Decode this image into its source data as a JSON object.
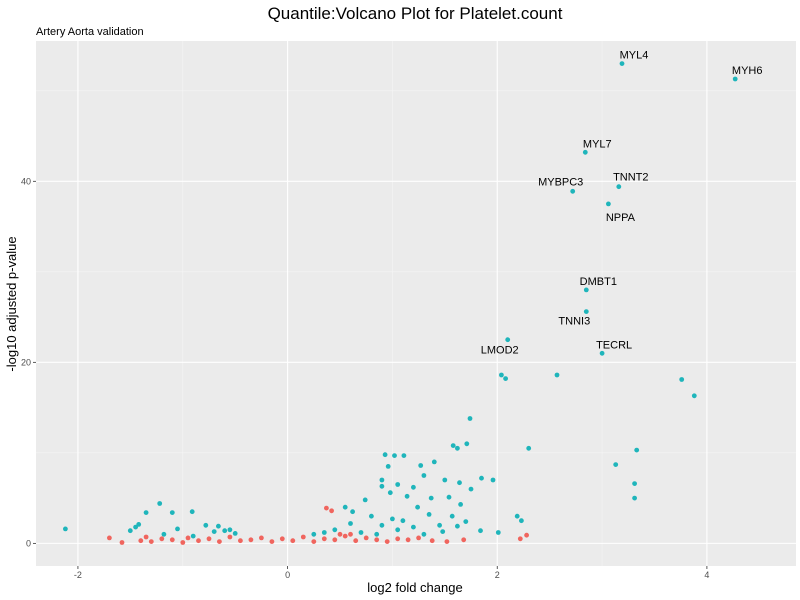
{
  "chart_data": {
    "type": "scatter",
    "title": "Quantile:Volcano Plot for Platelet.count",
    "subtitle": "Artery Aorta validation",
    "xlabel": "log2 fold change",
    "ylabel": "-log10 adjusted p-value",
    "xlim": [
      -2.4,
      4.85
    ],
    "ylim": [
      -2.5,
      55.5
    ],
    "x_ticks": [
      -2,
      0,
      2,
      4
    ],
    "y_ticks": [
      0,
      20,
      40
    ],
    "grid": true,
    "legend": "none",
    "colors": {
      "panel": "#ebebeb",
      "grid_major": "#ffffff",
      "significant": "#1fb5bb",
      "not_significant": "#f0655e"
    },
    "series": [
      {
        "points": [
          [
            4.27,
            51.3
          ],
          [
            3.19,
            53.0
          ],
          [
            2.84,
            43.2
          ],
          [
            3.16,
            39.4
          ],
          [
            2.72,
            38.9
          ],
          [
            3.06,
            37.5
          ],
          [
            2.85,
            28.0
          ],
          [
            2.85,
            25.6
          ],
          [
            2.1,
            22.5
          ],
          [
            3.0,
            21.0
          ],
          [
            2.04,
            18.6
          ],
          [
            2.08,
            18.2
          ],
          [
            2.57,
            18.6
          ],
          [
            3.76,
            18.1
          ],
          [
            3.88,
            16.3
          ],
          [
            1.74,
            13.8
          ],
          [
            1.58,
            10.8
          ],
          [
            1.62,
            10.5
          ],
          [
            1.71,
            11.0
          ],
          [
            2.3,
            10.5
          ],
          [
            3.33,
            10.3
          ],
          [
            3.13,
            8.7
          ],
          [
            1.27,
            8.6
          ],
          [
            1.4,
            9.0
          ],
          [
            0.93,
            9.8
          ],
          [
            1.02,
            9.7
          ],
          [
            0.96,
            8.5
          ],
          [
            1.11,
            9.7
          ],
          [
            1.3,
            7.5
          ],
          [
            0.9,
            7.0
          ],
          [
            1.05,
            6.5
          ],
          [
            1.2,
            6.2
          ],
          [
            1.5,
            7.0
          ],
          [
            1.64,
            6.7
          ],
          [
            1.75,
            6.0
          ],
          [
            1.85,
            7.2
          ],
          [
            1.96,
            7.0
          ],
          [
            0.9,
            6.3
          ],
          [
            0.98,
            5.6
          ],
          [
            1.14,
            5.2
          ],
          [
            1.37,
            5.0
          ],
          [
            1.54,
            5.1
          ],
          [
            1.65,
            4.3
          ],
          [
            1.24,
            4.0
          ],
          [
            0.74,
            4.8
          ],
          [
            3.31,
            6.6
          ],
          [
            3.31,
            5.0
          ],
          [
            0.55,
            4.0
          ],
          [
            0.62,
            3.5
          ],
          [
            0.8,
            3.0
          ],
          [
            1.0,
            2.7
          ],
          [
            1.1,
            2.5
          ],
          [
            1.35,
            3.2
          ],
          [
            1.45,
            2.0
          ],
          [
            1.57,
            3.0
          ],
          [
            1.7,
            2.4
          ],
          [
            0.9,
            2.0
          ],
          [
            0.6,
            2.2
          ],
          [
            0.45,
            1.5
          ],
          [
            0.7,
            1.2
          ],
          [
            0.85,
            1.0
          ],
          [
            1.05,
            1.5
          ],
          [
            1.2,
            1.8
          ],
          [
            1.3,
            1.0
          ],
          [
            1.48,
            1.3
          ],
          [
            1.62,
            1.9
          ],
          [
            1.84,
            1.4
          ],
          [
            2.01,
            1.2
          ],
          [
            2.19,
            3.0
          ],
          [
            2.23,
            2.5
          ],
          [
            0.35,
            1.2
          ],
          [
            0.25,
            1.0
          ],
          [
            -2.12,
            1.6
          ],
          [
            -1.42,
            2.1
          ],
          [
            -1.45,
            1.8
          ],
          [
            -1.35,
            3.4
          ],
          [
            -1.22,
            4.4
          ],
          [
            -1.1,
            3.4
          ],
          [
            -0.91,
            3.5
          ],
          [
            -1.5,
            1.4
          ],
          [
            -1.05,
            1.6
          ],
          [
            -0.78,
            2.0
          ],
          [
            -0.66,
            1.9
          ],
          [
            -0.6,
            1.4
          ],
          [
            -0.55,
            1.5
          ],
          [
            -1.18,
            1.0
          ],
          [
            -0.9,
            0.8
          ],
          [
            -0.7,
            1.3
          ],
          [
            -0.5,
            1.1
          ]
        ]
      },
      {
        "points": [
          [
            -1.58,
            0.1
          ],
          [
            -1.7,
            0.6
          ],
          [
            -1.35,
            0.7
          ],
          [
            -1.4,
            0.3
          ],
          [
            -1.3,
            0.2
          ],
          [
            -1.2,
            0.5
          ],
          [
            -1.1,
            0.4
          ],
          [
            -1.0,
            0.1
          ],
          [
            -0.95,
            0.6
          ],
          [
            -0.85,
            0.3
          ],
          [
            -0.75,
            0.5
          ],
          [
            -0.65,
            0.2
          ],
          [
            -0.55,
            0.7
          ],
          [
            -0.45,
            0.3
          ],
          [
            -0.35,
            0.4
          ],
          [
            -0.25,
            0.6
          ],
          [
            -0.15,
            0.2
          ],
          [
            -0.05,
            0.5
          ],
          [
            0.05,
            0.3
          ],
          [
            0.15,
            0.7
          ],
          [
            0.25,
            0.2
          ],
          [
            0.35,
            0.5
          ],
          [
            0.45,
            0.4
          ],
          [
            0.55,
            0.8
          ],
          [
            0.65,
            0.3
          ],
          [
            0.75,
            0.6
          ],
          [
            0.85,
            0.4
          ],
          [
            0.95,
            0.2
          ],
          [
            1.05,
            0.5
          ],
          [
            1.15,
            0.4
          ],
          [
            1.25,
            0.6
          ],
          [
            1.38,
            0.3
          ],
          [
            1.52,
            0.2
          ],
          [
            1.68,
            0.4
          ],
          [
            2.22,
            0.5
          ],
          [
            2.28,
            0.9
          ],
          [
            0.37,
            3.9
          ],
          [
            0.42,
            3.6
          ],
          [
            0.5,
            1.0
          ],
          [
            0.6,
            1.0
          ]
        ]
      }
    ],
    "annotations": [
      {
        "text": "MYL4",
        "x": 3.19,
        "y": 53.0
      },
      {
        "text": "MYH6",
        "x": 4.27,
        "y": 51.3
      },
      {
        "text": "MYL7",
        "x": 2.84,
        "y": 43.2
      },
      {
        "text": "TNNT2",
        "x": 3.16,
        "y": 39.4
      },
      {
        "text": "MYBPC3",
        "x": 2.72,
        "y": 38.9
      },
      {
        "text": "NPPA",
        "x": 3.06,
        "y": 37.5
      },
      {
        "text": "DMBT1",
        "x": 2.85,
        "y": 28.0
      },
      {
        "text": "TNNI3",
        "x": 2.85,
        "y": 25.6
      },
      {
        "text": "LMOD2",
        "x": 2.1,
        "y": 22.5
      },
      {
        "text": "TECRL",
        "x": 3.0,
        "y": 21.0
      }
    ]
  }
}
